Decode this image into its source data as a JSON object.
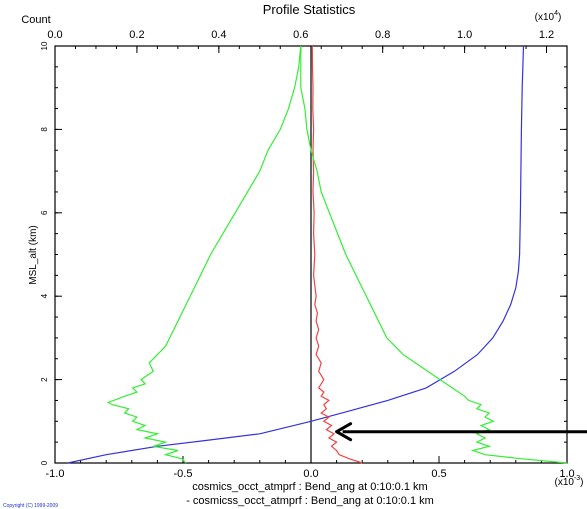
{
  "chart_data": {
    "type": "line",
    "title": "Profile Statistics",
    "top_axis": {
      "label": "Count",
      "range": [
        0,
        1.25
      ],
      "ticks": [
        0.0,
        0.2,
        0.4,
        0.6,
        0.8,
        1.0,
        1.2
      ],
      "tick_labels": [
        "0.0",
        "0.2",
        "0.4",
        "0.6",
        "0.8",
        "1.0",
        "1.2"
      ],
      "multiplier": "(x10",
      "multiplier_exp": "4",
      "multiplier_close": ")"
    },
    "bottom_axis": {
      "range": [
        -1.0,
        1.0
      ],
      "ticks": [
        -1.0,
        -0.5,
        0.0,
        0.5,
        1.0
      ],
      "tick_labels": [
        "-1.0",
        "-0.5",
        "0.0",
        "0.5",
        "1.0"
      ],
      "multiplier": "(x10",
      "multiplier_exp": "-3",
      "multiplier_close": ")"
    },
    "y_axis": {
      "label": "MSL_alt (km)",
      "range": [
        0,
        10
      ],
      "ticks": [
        0,
        2,
        4,
        6,
        8,
        10
      ],
      "tick_labels": [
        "0",
        "2",
        "4",
        "6",
        "8",
        "10"
      ]
    },
    "legend": [
      "cosmics_occt_atmprf : Bend_ang at 0:10:0.1 km",
      "- cosmicss_occt_atmprf : Bend_ang at 0:10:0.1 km"
    ],
    "series": [
      {
        "axis": "bottom",
        "color": "#3333dd",
        "points": [
          [
            -0.95,
            0
          ],
          [
            -0.8,
            0.2
          ],
          [
            -0.6,
            0.4
          ],
          [
            -0.4,
            0.55
          ],
          [
            -0.2,
            0.7
          ],
          [
            0.0,
            1.0
          ],
          [
            0.15,
            1.25
          ],
          [
            0.3,
            1.5
          ],
          [
            0.45,
            1.8
          ],
          [
            0.56,
            2.2
          ],
          [
            0.65,
            2.6
          ],
          [
            0.71,
            3.0
          ],
          [
            0.75,
            3.4
          ],
          [
            0.78,
            3.8
          ],
          [
            0.8,
            4.2
          ],
          [
            0.81,
            4.6
          ],
          [
            0.815,
            5.0
          ],
          [
            0.818,
            6.0
          ],
          [
            0.82,
            7.0
          ],
          [
            0.822,
            8.0
          ],
          [
            0.825,
            9.0
          ],
          [
            0.83,
            10.0
          ]
        ]
      },
      {
        "axis": "bottom",
        "color": "#ee4444",
        "points": [
          [
            0.2,
            0
          ],
          [
            0.15,
            0.1
          ],
          [
            0.11,
            0.2
          ],
          [
            0.1,
            0.3
          ],
          [
            0.08,
            0.4
          ],
          [
            0.1,
            0.5
          ],
          [
            0.07,
            0.6
          ],
          [
            0.09,
            0.7
          ],
          [
            0.06,
            0.8
          ],
          [
            0.08,
            0.9
          ],
          [
            0.05,
            1.0
          ],
          [
            0.07,
            1.1
          ],
          [
            0.04,
            1.2
          ],
          [
            0.06,
            1.3
          ],
          [
            0.05,
            1.4
          ],
          [
            0.07,
            1.5
          ],
          [
            0.04,
            1.6
          ],
          [
            0.05,
            1.7
          ],
          [
            0.03,
            1.8
          ],
          [
            0.05,
            2.0
          ],
          [
            0.03,
            2.2
          ],
          [
            0.04,
            2.4
          ],
          [
            0.02,
            2.6
          ],
          [
            0.03,
            2.8
          ],
          [
            0.02,
            3.0
          ],
          [
            0.03,
            3.2
          ],
          [
            0.02,
            3.4
          ],
          [
            0.025,
            3.6
          ],
          [
            0.015,
            3.8
          ],
          [
            0.02,
            4.0
          ],
          [
            0.01,
            4.5
          ],
          [
            0.015,
            5.0
          ],
          [
            0.01,
            5.5
          ],
          [
            0.012,
            6.0
          ],
          [
            0.008,
            6.5
          ],
          [
            0.01,
            7.0
          ],
          [
            0.008,
            7.5
          ],
          [
            0.01,
            8.0
          ],
          [
            0.007,
            8.5
          ],
          [
            0.008,
            9.0
          ],
          [
            0.006,
            9.5
          ],
          [
            0.005,
            10.0
          ]
        ]
      },
      {
        "axis": "top",
        "color": "#33ee33",
        "points": [
          [
            0.32,
            0.0
          ],
          [
            0.31,
            0.1
          ],
          [
            0.27,
            0.2
          ],
          [
            0.3,
            0.3
          ],
          [
            0.24,
            0.4
          ],
          [
            0.27,
            0.5
          ],
          [
            0.22,
            0.6
          ],
          [
            0.25,
            0.7
          ],
          [
            0.2,
            0.8
          ],
          [
            0.22,
            0.9
          ],
          [
            0.19,
            1.0
          ],
          [
            0.2,
            1.1
          ],
          [
            0.17,
            1.2
          ],
          [
            0.18,
            1.3
          ],
          [
            0.14,
            1.4
          ],
          [
            0.13,
            1.45
          ],
          [
            0.17,
            1.6
          ],
          [
            0.2,
            1.7
          ],
          [
            0.19,
            1.8
          ],
          [
            0.22,
            1.9
          ],
          [
            0.21,
            2.0
          ],
          [
            0.24,
            2.2
          ],
          [
            0.23,
            2.4
          ],
          [
            0.25,
            2.6
          ],
          [
            0.27,
            2.8
          ],
          [
            0.28,
            3.0
          ],
          [
            0.3,
            3.4
          ],
          [
            0.32,
            3.8
          ],
          [
            0.34,
            4.2
          ],
          [
            0.36,
            4.6
          ],
          [
            0.38,
            5.0
          ],
          [
            0.41,
            5.5
          ],
          [
            0.44,
            6.0
          ],
          [
            0.47,
            6.5
          ],
          [
            0.5,
            7.0
          ],
          [
            0.52,
            7.5
          ],
          [
            0.55,
            8.0
          ],
          [
            0.57,
            8.5
          ],
          [
            0.585,
            9.0
          ],
          [
            0.595,
            9.5
          ],
          [
            0.6,
            10.0
          ]
        ]
      },
      {
        "axis": "top",
        "color": "#33ee33",
        "points": [
          [
            1.25,
            0.0
          ],
          [
            1.14,
            0.1
          ],
          [
            1.05,
            0.2
          ],
          [
            1.02,
            0.3
          ],
          [
            1.06,
            0.4
          ],
          [
            1.03,
            0.5
          ],
          [
            1.05,
            0.6
          ],
          [
            1.03,
            0.7
          ],
          [
            1.06,
            0.8
          ],
          [
            1.04,
            0.9
          ],
          [
            1.07,
            1.0
          ],
          [
            1.05,
            1.1
          ],
          [
            1.06,
            1.2
          ],
          [
            1.03,
            1.3
          ],
          [
            1.04,
            1.4
          ],
          [
            1.01,
            1.5
          ],
          [
            1.0,
            1.6
          ],
          [
            0.97,
            1.8
          ],
          [
            0.94,
            2.0
          ],
          [
            0.91,
            2.2
          ],
          [
            0.88,
            2.4
          ],
          [
            0.85,
            2.6
          ],
          [
            0.83,
            2.8
          ],
          [
            0.81,
            3.0
          ],
          [
            0.79,
            3.4
          ],
          [
            0.77,
            3.8
          ],
          [
            0.75,
            4.2
          ],
          [
            0.73,
            4.6
          ],
          [
            0.71,
            5.0
          ],
          [
            0.69,
            5.5
          ],
          [
            0.67,
            6.0
          ],
          [
            0.65,
            6.5
          ],
          [
            0.64,
            7.0
          ],
          [
            0.625,
            7.5
          ],
          [
            0.615,
            8.0
          ],
          [
            0.61,
            8.5
          ],
          [
            0.6,
            9.0
          ],
          [
            0.6,
            9.5
          ],
          [
            0.6,
            10.0
          ]
        ]
      }
    ],
    "annotation": {
      "type": "arrow",
      "points_to": {
        "x": 0.1,
        "y": 0.75
      }
    },
    "grid": false
  },
  "footer": {
    "copyright": "Copyright (C) 1999-2009"
  }
}
